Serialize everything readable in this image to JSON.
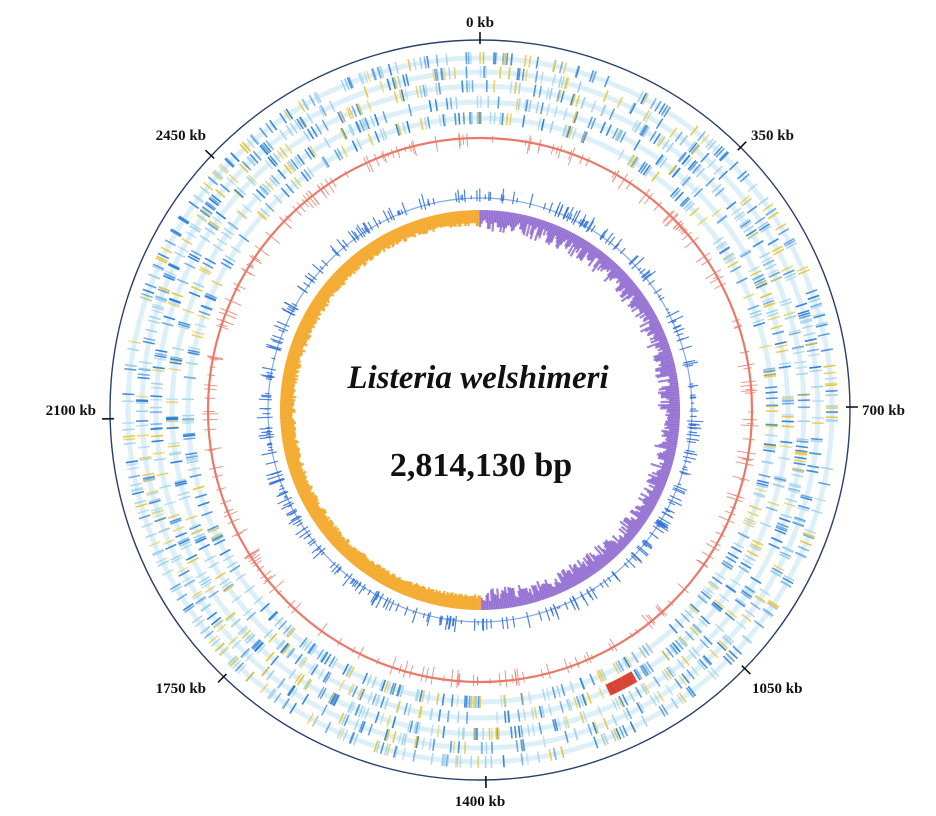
{
  "map": {
    "organism": "Listeria welshimeri",
    "genome_size": "2,814,130 bp",
    "genome_length_bp": 2814130,
    "scale_labels": [
      {
        "kb": 0,
        "label": "0 kb"
      },
      {
        "kb": 350,
        "label": "350 kb"
      },
      {
        "kb": 700,
        "label": "700 kb"
      },
      {
        "kb": 1050,
        "label": "1050 kb"
      },
      {
        "kb": 1400,
        "label": "1400 kb"
      },
      {
        "kb": 1750,
        "label": "1750 kb"
      },
      {
        "kb": 2100,
        "label": "2100 kb"
      },
      {
        "kb": 2450,
        "label": "2450 kb"
      }
    ],
    "colors": {
      "outer_circle": "#2a3f6a",
      "feature_blue": "#2f7fd8",
      "feature_light": "#9fd0e8",
      "feature_yellow": "#e8c63a",
      "feature_red": "#d83a2a",
      "gc_content": "#e97a6a",
      "gc_content_markers": "#2f6fd8",
      "gc_skew_positive": "#7a4fc8",
      "gc_skew_negative": "#f3a626"
    }
  }
}
